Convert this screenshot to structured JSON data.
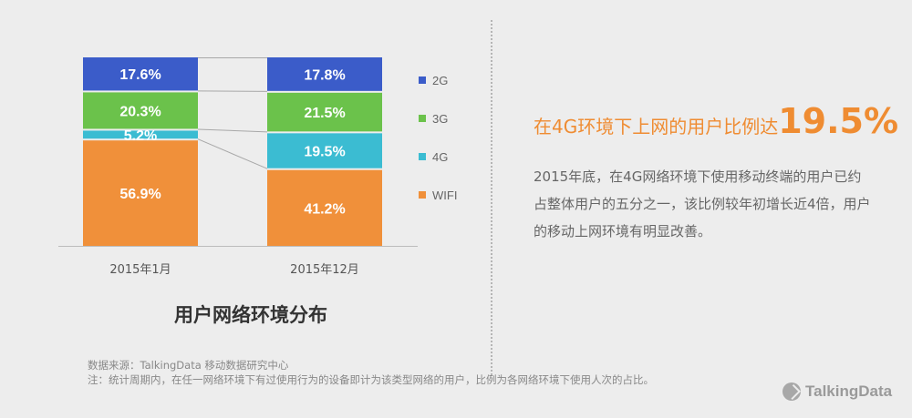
{
  "chart_data": {
    "type": "bar",
    "stacked": true,
    "percent": true,
    "categories": [
      "2015年1月",
      "2015年12月"
    ],
    "series": [
      {
        "name": "WIFI",
        "color": "#f0903a",
        "values": [
          56.9,
          41.2
        ],
        "labels": [
          "56.9%",
          "41.2%"
        ]
      },
      {
        "name": "4G",
        "color": "#3bbcd2",
        "values": [
          5.2,
          19.5
        ],
        "labels": [
          "5.2%",
          "19.5%"
        ]
      },
      {
        "name": "3G",
        "color": "#6bc24b",
        "values": [
          20.3,
          21.5
        ],
        "labels": [
          "20.3%",
          "21.5%"
        ]
      },
      {
        "name": "2G",
        "color": "#3b5cc9",
        "values": [
          17.6,
          17.8
        ],
        "labels": [
          "17.6%",
          "17.8%"
        ]
      }
    ],
    "legend_order": [
      "2G",
      "3G",
      "4G",
      "WIFI"
    ],
    "legend_position": "right",
    "ylim": [
      0,
      100
    ],
    "title": "用户网络环境分布"
  },
  "headline": {
    "lead": "在4G环境下上网的用户比例达",
    "value": "19.5%"
  },
  "description": "2015年底，在4G网络环境下使用移动终端的用户已约占整体用户的五分之一，该比例较年初增长近4倍，用户的移动上网环境有明显改善。",
  "source": {
    "line1": "数据来源：TalkingData 移动数据研究中心",
    "line2": "注：统计周期内，在任一网络环境下有过使用行为的设备即计为该类型网络的用户，比例为各网络环境下使用人次的占比。"
  },
  "brand": "TalkingData",
  "colors": {
    "accent": "#ef8c32",
    "background": "#ededed"
  }
}
